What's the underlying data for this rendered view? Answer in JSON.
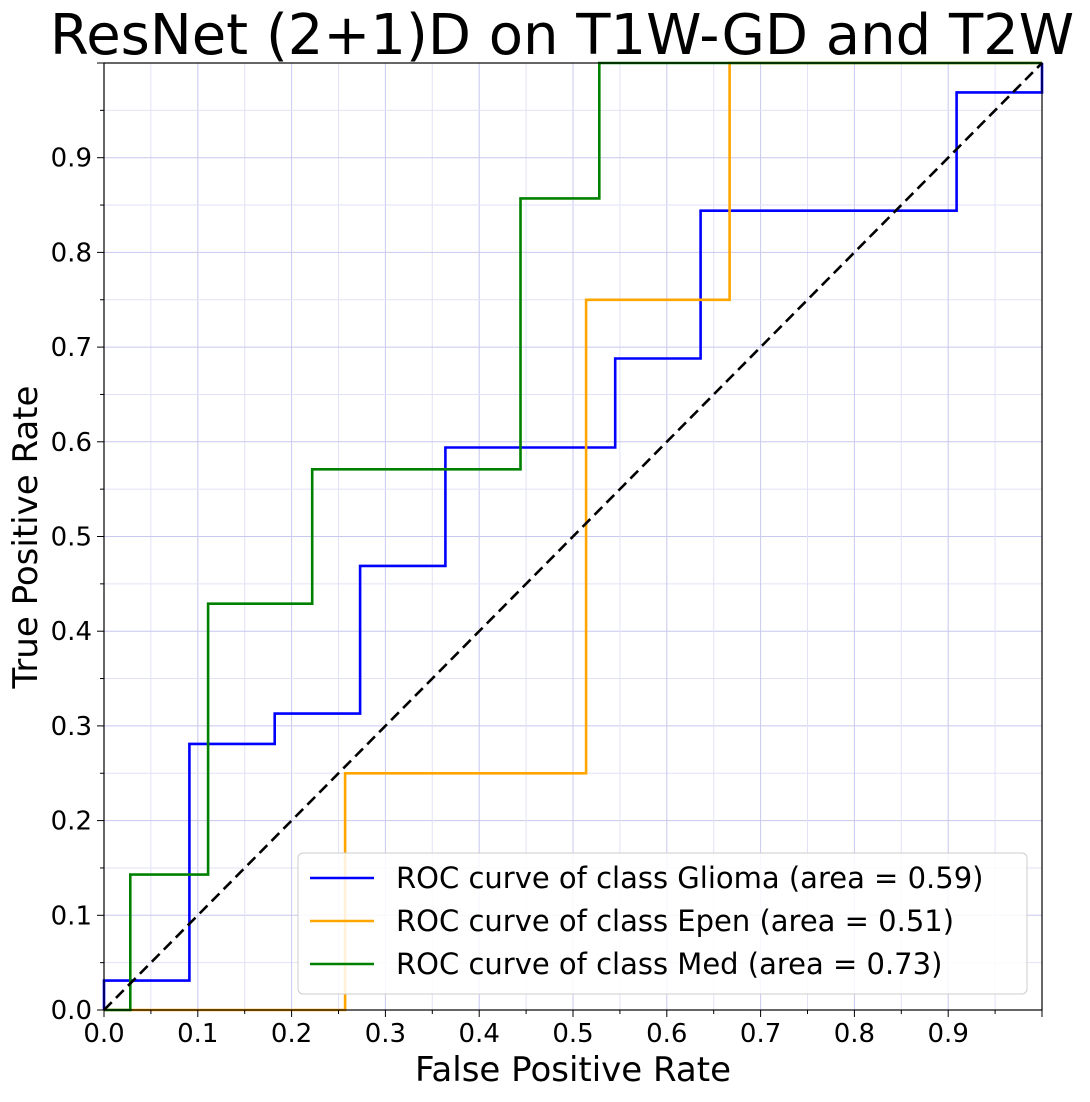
{
  "chart_data": {
    "type": "line",
    "title": "ResNet (2+1)D on T1W-GD and T2W",
    "xlabel": "False Positive Rate",
    "ylabel": "True Positive Rate",
    "xlim": [
      0.0,
      1.0
    ],
    "ylim": [
      0.0,
      1.0
    ],
    "grid": true,
    "legend_position": "lower-right",
    "x_tick_labels": [
      "0.0",
      "0.1",
      "0.2",
      "0.3",
      "0.4",
      "0.5",
      "0.6",
      "0.7",
      "0.8",
      "0.9"
    ],
    "y_tick_labels": [
      "0.0",
      "0.1",
      "0.2",
      "0.3",
      "0.4",
      "0.5",
      "0.6",
      "0.7",
      "0.8",
      "0.9"
    ],
    "series": [
      {
        "name": "ROC curve of class Glioma (area = 0.59)",
        "color": "#0000ff",
        "points": [
          [
            0.0,
            0.0
          ],
          [
            0.0,
            0.031
          ],
          [
            0.091,
            0.031
          ],
          [
            0.091,
            0.281
          ],
          [
            0.182,
            0.281
          ],
          [
            0.182,
            0.313
          ],
          [
            0.273,
            0.313
          ],
          [
            0.273,
            0.469
          ],
          [
            0.364,
            0.469
          ],
          [
            0.364,
            0.594
          ],
          [
            0.545,
            0.594
          ],
          [
            0.545,
            0.688
          ],
          [
            0.636,
            0.688
          ],
          [
            0.636,
            0.844
          ],
          [
            0.909,
            0.844
          ],
          [
            0.909,
            0.969
          ],
          [
            1.0,
            0.969
          ],
          [
            1.0,
            1.0
          ]
        ]
      },
      {
        "name": "ROC curve of class Epen (area = 0.51)",
        "color": "#ffa500",
        "points": [
          [
            0.0,
            0.0
          ],
          [
            0.257,
            0.0
          ],
          [
            0.257,
            0.25
          ],
          [
            0.514,
            0.25
          ],
          [
            0.514,
            0.75
          ],
          [
            0.667,
            0.75
          ],
          [
            0.667,
            1.0
          ],
          [
            1.0,
            1.0
          ]
        ]
      },
      {
        "name": "ROC curve of class Med (area = 0.73)",
        "color": "#008000",
        "points": [
          [
            0.0,
            0.0
          ],
          [
            0.028,
            0.0
          ],
          [
            0.028,
            0.143
          ],
          [
            0.111,
            0.143
          ],
          [
            0.111,
            0.429
          ],
          [
            0.222,
            0.429
          ],
          [
            0.222,
            0.571
          ],
          [
            0.444,
            0.571
          ],
          [
            0.444,
            0.857
          ],
          [
            0.528,
            0.857
          ],
          [
            0.528,
            1.0
          ],
          [
            1.0,
            1.0
          ]
        ]
      }
    ],
    "reference_line": {
      "points": [
        [
          0.0,
          0.0
        ],
        [
          1.0,
          1.0
        ]
      ],
      "color": "#000000",
      "style": "dashed"
    }
  }
}
